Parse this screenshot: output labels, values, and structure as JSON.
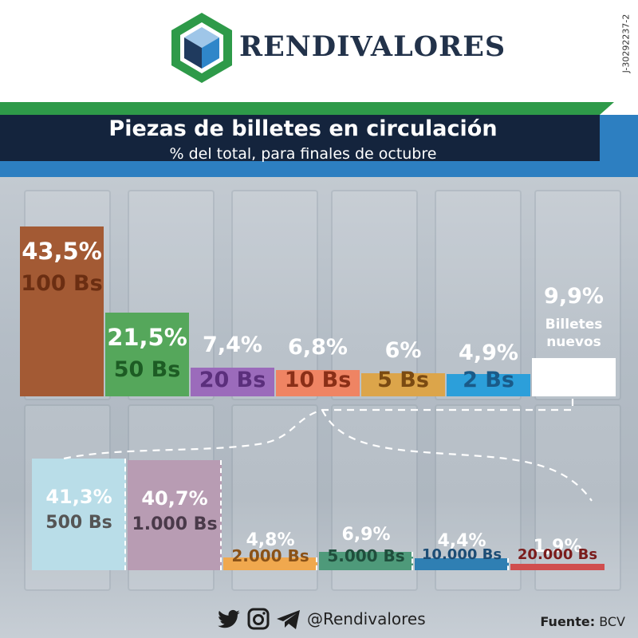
{
  "brand": {
    "name": "RENDIVALORES",
    "rif": "J-30292237-2"
  },
  "header": {
    "title": "Piezas de billetes en circulación",
    "subtitle": "% del total, para finales de octubre"
  },
  "chart_data": [
    {
      "type": "bar",
      "title": "Piezas de billetes en circulación",
      "subtitle": "% del total, para finales de octubre",
      "unit": "%",
      "categories": [
        "100 Bs",
        "50 Bs",
        "20 Bs",
        "10 Bs",
        "5 Bs",
        "2 Bs",
        "Billetes nuevos"
      ],
      "values": [
        43.5,
        21.5,
        7.4,
        6.8,
        6.0,
        4.9,
        9.9
      ],
      "labels": [
        "43,5%",
        "21,5%",
        "7,4%",
        "6,8%",
        "6%",
        "4,9%",
        "9,9%"
      ],
      "colors": [
        "#a35a34",
        "#55a75b",
        "#9b6bbb",
        "#ef8463",
        "#dca54a",
        "#2c9fda",
        "#ffffff"
      ],
      "label_colors": [
        "#6b2e12",
        "#1d5c24",
        "#5b2f7c",
        "#8a2f17",
        "#7a4a12",
        "#1a5a88",
        "#ffffff"
      ]
    },
    {
      "type": "bar",
      "title": "Billetes nuevos",
      "unit": "%",
      "categories": [
        "500 Bs",
        "1.000 Bs",
        "2.000 Bs",
        "5.000 Bs",
        "10.000 Bs",
        "20.000 Bs"
      ],
      "values": [
        41.3,
        40.7,
        4.8,
        6.9,
        4.4,
        1.9
      ],
      "labels": [
        "41,3%",
        "40,7%",
        "4,8%",
        "6,9%",
        "4,4%",
        "1,9%"
      ],
      "colors": [
        "#b9dde8",
        "#b89cb3",
        "#f0a84e",
        "#4e9a7a",
        "#2f7fb3",
        "#d04e4e"
      ],
      "label_colors": [
        "#555555",
        "#4a3a4a",
        "#8a5218",
        "#1f4e3c",
        "#1d4d75",
        "#7a1c1c"
      ]
    }
  ],
  "footer": {
    "handle": "@Rendivalores",
    "source_label": "Fuente:",
    "source_value": "BCV"
  },
  "icons": [
    "twitter-icon",
    "instagram-icon",
    "telegram-icon"
  ]
}
